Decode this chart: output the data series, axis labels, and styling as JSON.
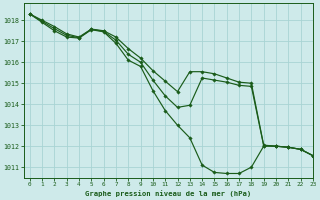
{
  "title": "Graphe pression niveau de la mer (hPa)",
  "bg_color": "#ceeaea",
  "grid_color": "#a8d4d4",
  "line_color": "#1a5c1a",
  "xlim": [
    -0.5,
    23
  ],
  "ylim": [
    1010.5,
    1018.8
  ],
  "yticks": [
    1011,
    1012,
    1013,
    1014,
    1015,
    1016,
    1017,
    1018
  ],
  "xticks": [
    0,
    1,
    2,
    3,
    4,
    5,
    6,
    7,
    8,
    9,
    10,
    11,
    12,
    13,
    14,
    15,
    16,
    17,
    18,
    19,
    20,
    21,
    22,
    23
  ],
  "series": {
    "main": [
      1018.3,
      1017.9,
      1017.5,
      1017.2,
      1017.15,
      1017.55,
      1017.45,
      1016.9,
      1016.1,
      1015.8,
      1014.65,
      1013.7,
      1013.0,
      1012.4,
      1011.1,
      1010.75,
      1010.7,
      1010.7,
      1011.0,
      1012.0,
      1012.0,
      1011.95,
      1011.85,
      1011.55
    ],
    "upper1": [
      1018.3,
      1018.0,
      1017.7,
      1017.35,
      1017.2,
      1017.58,
      1017.5,
      1017.2,
      1016.65,
      1016.2,
      1015.6,
      1015.1,
      1014.6,
      1015.55,
      1015.55,
      1015.45,
      1015.25,
      1015.05,
      1015.0,
      1012.05,
      1012.0,
      1011.95,
      1011.85,
      1011.55
    ],
    "upper2": [
      1018.3,
      1017.95,
      1017.6,
      1017.28,
      1017.17,
      1017.57,
      1017.47,
      1017.05,
      1016.38,
      1016.0,
      1015.15,
      1014.4,
      1013.85,
      1013.95,
      1015.25,
      1015.15,
      1015.05,
      1014.9,
      1014.85,
      1012.03,
      1012.0,
      1011.95,
      1011.85,
      1011.55
    ]
  }
}
